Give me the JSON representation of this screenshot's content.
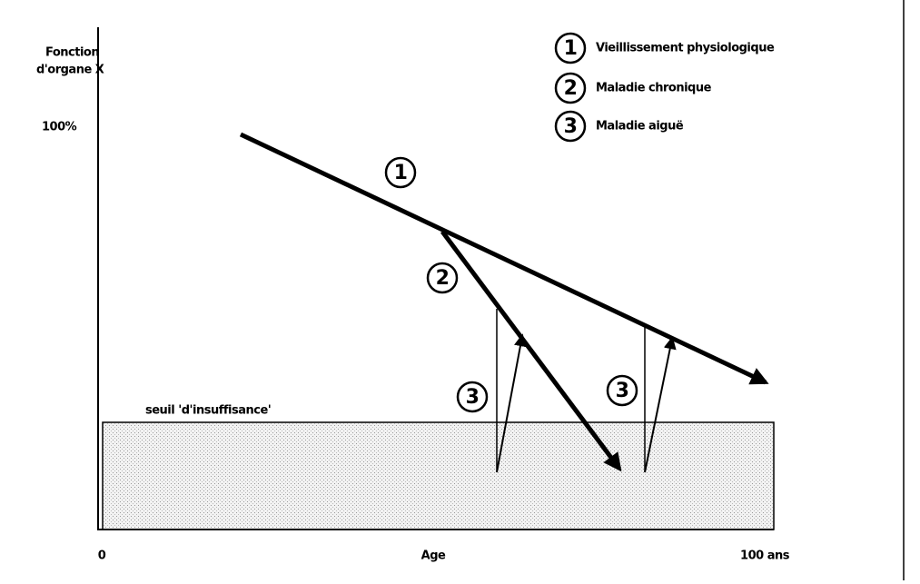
{
  "y_axis": {
    "label_lines": [
      "Fonction",
      "d'organe X"
    ],
    "top_label": "100%"
  },
  "x_axis": {
    "labels": [
      "0",
      "Age",
      "100 ans"
    ]
  },
  "threshold": {
    "label": "seuil 'd'insuffisance'"
  },
  "legend": [
    {
      "number": "1",
      "label": "Vieillissement physiologique"
    },
    {
      "number": "2",
      "label": "Maladie chronique"
    },
    {
      "number": "3",
      "label": "Maladie aiguë"
    }
  ],
  "markers": [
    "1",
    "2",
    "3",
    "3"
  ]
}
